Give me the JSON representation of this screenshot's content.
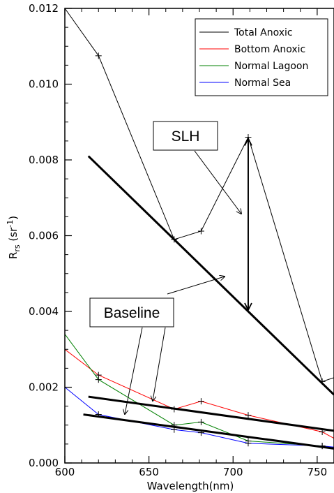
{
  "chart_data": {
    "type": "line",
    "xlabel": "Wavelength(nm)",
    "ylabel_main": "R",
    "ylabel_sub": "rs",
    "ylabel_unit": " (sr",
    "ylabel_exp": "-1",
    "ylabel_close": ")",
    "xlim": [
      600,
      760
    ],
    "ylim": [
      0.0,
      0.012
    ],
    "xticks": [
      600,
      650,
      700,
      750
    ],
    "yticks": [
      0.0,
      0.002,
      0.004,
      0.006,
      0.008,
      0.01,
      0.012
    ],
    "ytick_labels": [
      "0.000",
      "0.002",
      "0.004",
      "0.006",
      "0.008",
      "0.010",
      "0.012"
    ],
    "grid": false,
    "legend_position": "top-right",
    "series": [
      {
        "name": "Total Anoxic",
        "color": "#000000",
        "marker": "plus",
        "x": [
          600,
          620,
          665,
          681,
          709,
          753,
          760
        ],
        "y": [
          0.012,
          0.01075,
          0.0059,
          0.00612,
          0.0086,
          0.00215,
          0.00225
        ]
      },
      {
        "name": "Bottom Anoxic",
        "color": "#ff0000",
        "marker": "plus",
        "x": [
          600,
          620,
          665,
          681,
          709,
          753,
          760
        ],
        "y": [
          0.003,
          0.00232,
          0.00142,
          0.00163,
          0.00126,
          0.00082,
          0.00065
        ]
      },
      {
        "name": "Normal Lagoon",
        "color": "#008000",
        "marker": "plus",
        "x": [
          600,
          620,
          665,
          681,
          709,
          753,
          760
        ],
        "y": [
          0.0034,
          0.0022,
          0.001,
          0.00108,
          0.00058,
          0.00045,
          0.0004
        ]
      },
      {
        "name": "Normal Sea",
        "color": "#0000ff",
        "marker": "plus",
        "x": [
          600,
          620,
          665,
          681,
          709,
          753,
          760
        ],
        "y": [
          0.002,
          0.00128,
          0.00088,
          0.0008,
          0.00052,
          0.00045,
          0.00042
        ]
      }
    ],
    "baselines": [
      {
        "x": [
          614,
          760
        ],
        "y": [
          0.0081,
          0.0018
        ]
      },
      {
        "x": [
          614,
          760
        ],
        "y": [
          0.00175,
          0.00085
        ]
      },
      {
        "x": [
          611,
          760
        ],
        "y": [
          0.00128,
          0.00038
        ]
      }
    ],
    "annotations": {
      "slh_label": "SLH",
      "baseline_label": "Baseline",
      "slh_arrow": {
        "x": 709,
        "y_top": 0.0086,
        "y_bottom": 0.004
      }
    }
  }
}
